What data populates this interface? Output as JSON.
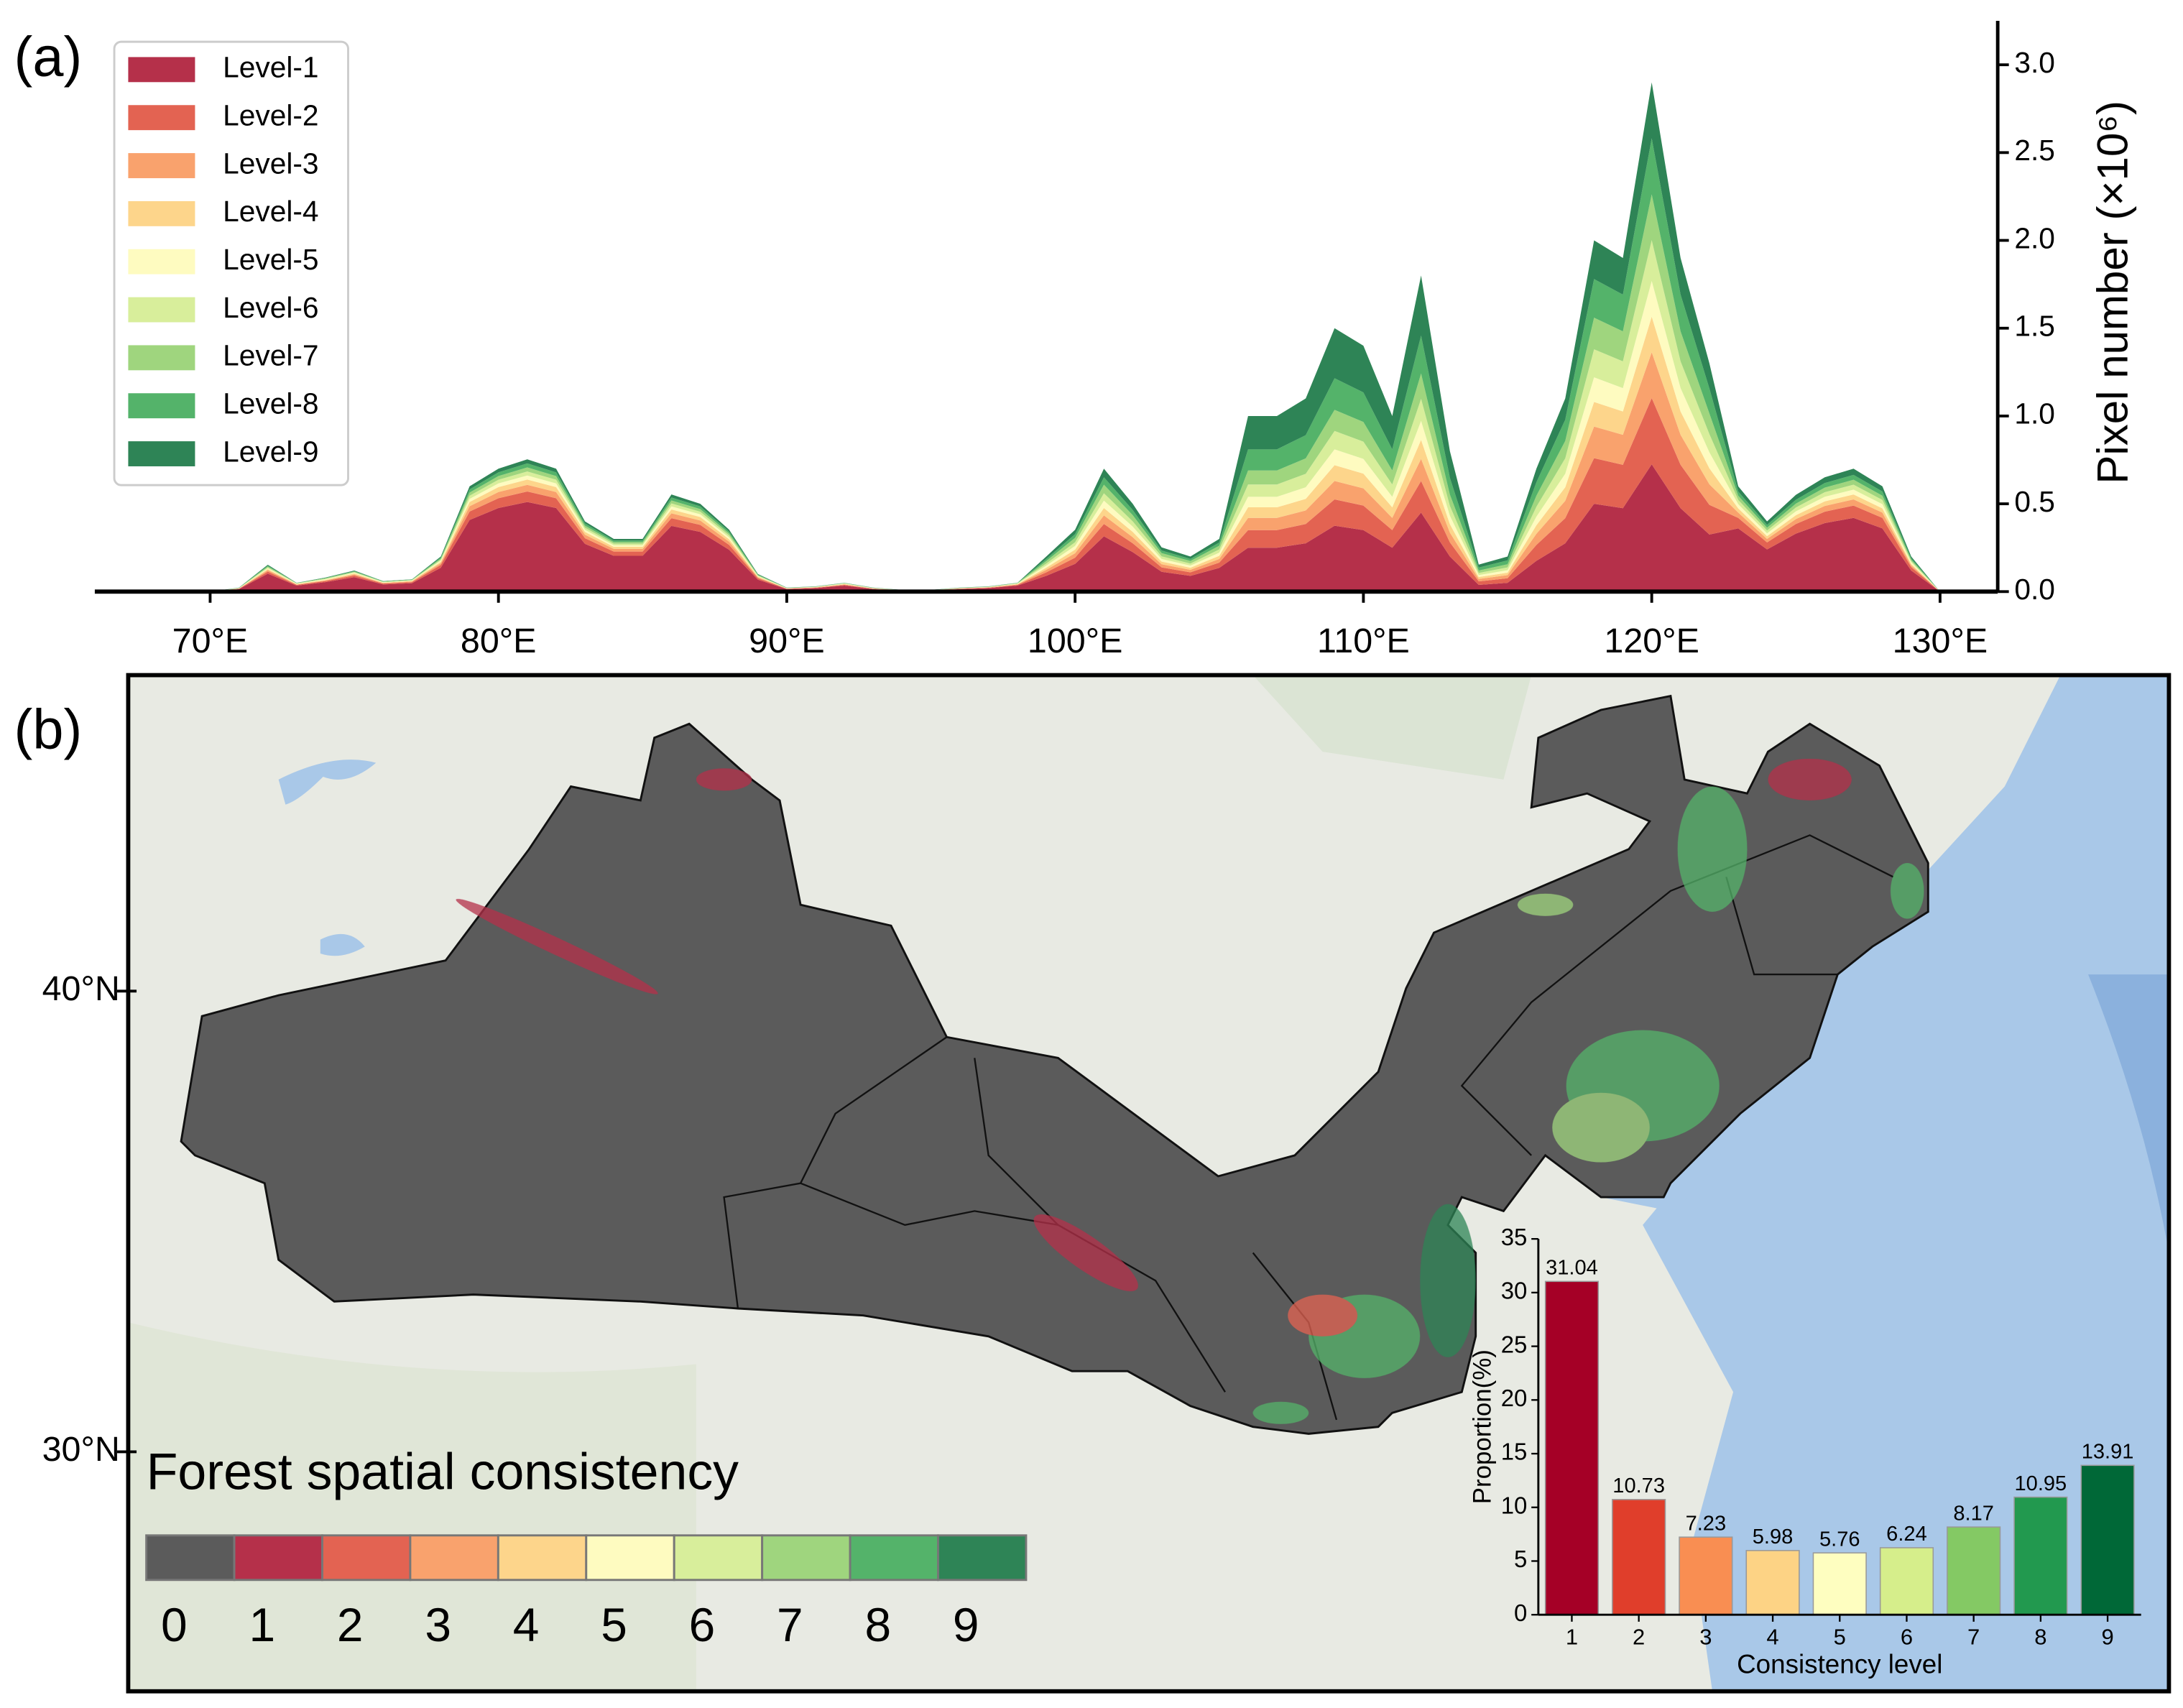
{
  "chart_data": [
    {
      "type": "stacked_area",
      "panel_label": "(a)",
      "ylabel": "Pixel number (×10⁶)",
      "x": [
        70,
        71,
        72,
        73,
        74,
        75,
        76,
        77,
        78,
        79,
        80,
        81,
        82,
        83,
        84,
        85,
        86,
        87,
        88,
        89,
        90,
        91,
        92,
        93,
        94,
        95,
        96,
        97,
        98,
        99,
        100,
        101,
        102,
        103,
        104,
        105,
        106,
        107,
        108,
        109,
        110,
        111,
        112,
        113,
        114,
        115,
        116,
        117,
        118,
        119,
        120,
        121,
        122,
        123,
        124,
        125,
        126,
        127,
        128,
        129,
        130
      ],
      "xlim": [
        66,
        132
      ],
      "xticks": [
        {
          "value": 70,
          "label": "70°E"
        },
        {
          "value": 80,
          "label": "80°E"
        },
        {
          "value": 90,
          "label": "90°E"
        },
        {
          "value": 100,
          "label": "100°E"
        },
        {
          "value": 110,
          "label": "110°E"
        },
        {
          "value": 120,
          "label": "120°E"
        },
        {
          "value": 130,
          "label": "130°E"
        }
      ],
      "ylim": [
        0,
        3.25
      ],
      "yticks": [
        {
          "value": 0,
          "label": "0.0"
        },
        0.5,
        {
          "value": 1,
          "label": "1.0"
        },
        1.5,
        {
          "value": 2,
          "label": "2.0"
        },
        2.5,
        {
          "value": 3,
          "label": "3.0"
        }
      ],
      "y_axis_side": "right",
      "legend": "upper left",
      "series": [
        {
          "name": "Level-1",
          "color": "#b5304a",
          "values": [
            0,
            0.014,
            0.102,
            0.034,
            0.054,
            0.082,
            0.041,
            0.048,
            0.136,
            0.408,
            0.476,
            0.51,
            0.476,
            0.272,
            0.204,
            0.204,
            0.374,
            0.34,
            0.238,
            0.068,
            0.014,
            0.02,
            0.034,
            0.014,
            0.007,
            0.007,
            0.014,
            0.02,
            0.034,
            0.09,
            0.158,
            0.315,
            0.225,
            0.113,
            0.09,
            0.135,
            0.25,
            0.25,
            0.275,
            0.375,
            0.35,
            0.25,
            0.45,
            0.2,
            0.038,
            0.05,
            0.175,
            0.275,
            0.5,
            0.475,
            0.725,
            0.475,
            0.325,
            0.36,
            0.24,
            0.33,
            0.39,
            0.42,
            0.36,
            0.12,
            0
          ]
        },
        {
          "name": "Level-2",
          "color": "#e36352",
          "values": [
            0,
            0.002,
            0.012,
            0.004,
            0.006,
            0.01,
            0.005,
            0.006,
            0.016,
            0.048,
            0.056,
            0.06,
            0.056,
            0.032,
            0.024,
            0.024,
            0.044,
            0.04,
            0.028,
            0.008,
            0.002,
            0.002,
            0.004,
            0.002,
            0.001,
            0.001,
            0.002,
            0.002,
            0.004,
            0.02,
            0.035,
            0.07,
            0.05,
            0.025,
            0.02,
            0.03,
            0.1,
            0.1,
            0.11,
            0.15,
            0.14,
            0.1,
            0.18,
            0.08,
            0.02,
            0.026,
            0.091,
            0.143,
            0.26,
            0.247,
            0.377,
            0.247,
            0.169,
            0.06,
            0.04,
            0.055,
            0.065,
            0.07,
            0.06,
            0.02,
            0
          ]
        },
        {
          "name": "Level-3",
          "color": "#f9a26d",
          "values": [
            0,
            0.001,
            0.008,
            0.003,
            0.004,
            0.006,
            0.003,
            0.004,
            0.01,
            0.03,
            0.035,
            0.038,
            0.035,
            0.02,
            0.015,
            0.015,
            0.028,
            0.025,
            0.018,
            0.005,
            0.001,
            0.002,
            0.003,
            0.001,
            0.001,
            0.001,
            0.001,
            0.002,
            0.003,
            0.014,
            0.025,
            0.049,
            0.035,
            0.018,
            0.014,
            0.021,
            0.07,
            0.07,
            0.077,
            0.105,
            0.098,
            0.07,
            0.126,
            0.056,
            0.014,
            0.018,
            0.063,
            0.099,
            0.18,
            0.171,
            0.261,
            0.171,
            0.117,
            0.03,
            0.02,
            0.028,
            0.033,
            0.035,
            0.03,
            0.01,
            0
          ]
        },
        {
          "name": "Level-4",
          "color": "#fdd58b",
          "values": [
            0,
            0.001,
            0.006,
            0.002,
            0.003,
            0.005,
            0.002,
            0.003,
            0.008,
            0.024,
            0.028,
            0.03,
            0.028,
            0.016,
            0.012,
            0.012,
            0.022,
            0.02,
            0.014,
            0.004,
            0.001,
            0.001,
            0.002,
            0.001,
            0,
            0,
            0.001,
            0.001,
            0.002,
            0.012,
            0.021,
            0.042,
            0.03,
            0.015,
            0.012,
            0.018,
            0.06,
            0.06,
            0.066,
            0.09,
            0.084,
            0.06,
            0.108,
            0.048,
            0.011,
            0.014,
            0.049,
            0.077,
            0.14,
            0.133,
            0.203,
            0.133,
            0.091,
            0.024,
            0.016,
            0.022,
            0.026,
            0.028,
            0.024,
            0.008,
            0
          ]
        },
        {
          "name": "Level-5",
          "color": "#fefbc0",
          "values": [
            0,
            0.001,
            0.005,
            0.002,
            0.003,
            0.004,
            0.002,
            0.002,
            0.006,
            0.018,
            0.021,
            0.023,
            0.021,
            0.012,
            0.009,
            0.009,
            0.017,
            0.015,
            0.011,
            0.003,
            0.001,
            0.001,
            0.002,
            0.001,
            0,
            0,
            0.001,
            0.001,
            0.002,
            0.012,
            0.021,
            0.042,
            0.03,
            0.015,
            0.012,
            0.018,
            0.06,
            0.06,
            0.066,
            0.09,
            0.084,
            0.06,
            0.108,
            0.048,
            0.011,
            0.014,
            0.049,
            0.077,
            0.14,
            0.133,
            0.203,
            0.133,
            0.091,
            0.024,
            0.016,
            0.022,
            0.026,
            0.028,
            0.024,
            0.008,
            0
          ]
        },
        {
          "name": "Level-6",
          "color": "#d8ee9b",
          "values": [
            0,
            0.001,
            0.005,
            0.002,
            0.003,
            0.004,
            0.002,
            0.002,
            0.006,
            0.018,
            0.021,
            0.023,
            0.021,
            0.012,
            0.009,
            0.009,
            0.017,
            0.015,
            0.011,
            0.003,
            0.001,
            0.001,
            0.002,
            0.001,
            0,
            0,
            0.001,
            0.001,
            0.002,
            0.012,
            0.021,
            0.042,
            0.03,
            0.015,
            0.012,
            0.018,
            0.07,
            0.07,
            0.077,
            0.105,
            0.098,
            0.07,
            0.126,
            0.056,
            0.012,
            0.016,
            0.056,
            0.088,
            0.16,
            0.152,
            0.232,
            0.152,
            0.104,
            0.024,
            0.016,
            0.022,
            0.026,
            0.028,
            0.024,
            0.008,
            0
          ]
        },
        {
          "name": "Level-7",
          "color": "#9fd57e",
          "values": [
            0,
            0.001,
            0.005,
            0.001,
            0.003,
            0.003,
            0.002,
            0.002,
            0.006,
            0.018,
            0.021,
            0.023,
            0.021,
            0.012,
            0.009,
            0.009,
            0.017,
            0.015,
            0.011,
            0.003,
            0.001,
            0.001,
            0.001,
            0.001,
            0,
            0,
            0.001,
            0.001,
            0.001,
            0.014,
            0.025,
            0.049,
            0.035,
            0.018,
            0.014,
            0.021,
            0.08,
            0.08,
            0.088,
            0.12,
            0.112,
            0.08,
            0.144,
            0.064,
            0.014,
            0.018,
            0.063,
            0.099,
            0.18,
            0.171,
            0.261,
            0.171,
            0.117,
            0.024,
            0.016,
            0.022,
            0.026,
            0.028,
            0.024,
            0.008,
            0
          ]
        },
        {
          "name": "Level-8",
          "color": "#54b36a",
          "values": [
            0,
            0.001,
            0.005,
            0.001,
            0.002,
            0.003,
            0.002,
            0.002,
            0.006,
            0.018,
            0.021,
            0.023,
            0.021,
            0.012,
            0.009,
            0.009,
            0.017,
            0.015,
            0.011,
            0.003,
            0.001,
            0.001,
            0.001,
            0.001,
            0,
            0,
            0.001,
            0.001,
            0.001,
            0.012,
            0.021,
            0.042,
            0.03,
            0.015,
            0.012,
            0.018,
            0.12,
            0.12,
            0.132,
            0.18,
            0.168,
            0.12,
            0.216,
            0.096,
            0.017,
            0.022,
            0.077,
            0.121,
            0.22,
            0.209,
            0.319,
            0.209,
            0.143,
            0.024,
            0.016,
            0.022,
            0.026,
            0.028,
            0.024,
            0.008,
            0
          ]
        },
        {
          "name": "Level-9",
          "color": "#2e8456",
          "values": [
            0,
            0.001,
            0.005,
            0.001,
            0.002,
            0.003,
            0.001,
            0.001,
            0.006,
            0.018,
            0.021,
            0.023,
            0.021,
            0.012,
            0.009,
            0.009,
            0.017,
            0.015,
            0.011,
            0.003,
            0.001,
            0.001,
            0.001,
            0.001,
            0.001,
            0.001,
            0.001,
            0.001,
            0.001,
            0.014,
            0.025,
            0.049,
            0.035,
            0.018,
            0.014,
            0.021,
            0.19,
            0.19,
            0.209,
            0.285,
            0.266,
            0.19,
            0.342,
            0.152,
            0.017,
            0.022,
            0.077,
            0.121,
            0.22,
            0.209,
            0.319,
            0.209,
            0.143,
            0.03,
            0.02,
            0.028,
            0.033,
            0.035,
            0.03,
            0.01,
            0
          ]
        }
      ]
    },
    {
      "type": "map",
      "panel_label": "(b)",
      "ylim": [
        24.8,
        46.86
      ],
      "yticks": [
        {
          "value": 40,
          "label": "40°N"
        },
        {
          "value": 30,
          "label": "30°N"
        }
      ],
      "colorbar": {
        "title": "Forest spatial consistency",
        "labels": [
          0,
          1,
          2,
          3,
          4,
          5,
          6,
          7,
          8,
          9
        ],
        "colors": [
          "#5b5b5b",
          "#b5304a",
          "#e36352",
          "#f9a26d",
          "#fdd58b",
          "#fefbc0",
          "#d8ee9b",
          "#9fd57e",
          "#54b36a",
          "#2e8456"
        ]
      }
    },
    {
      "type": "bar",
      "ylabel": "Proportion(%)",
      "xlabel": "Consistency level",
      "categories": [
        "1",
        "2",
        "3",
        "4",
        "5",
        "6",
        "7",
        "8",
        "9"
      ],
      "values": [
        31.04,
        10.73,
        7.23,
        5.98,
        5.76,
        6.24,
        8.17,
        10.95,
        13.91
      ],
      "colors": [
        "#a50026",
        "#e03e2b",
        "#f98e52",
        "#fdd385",
        "#fefec0",
        "#d6ee8b",
        "#84c964",
        "#22994f",
        "#006837"
      ],
      "ylim": [
        0,
        35
      ],
      "yticks": [
        0,
        5,
        10,
        15,
        20,
        25,
        30,
        35
      ]
    }
  ]
}
